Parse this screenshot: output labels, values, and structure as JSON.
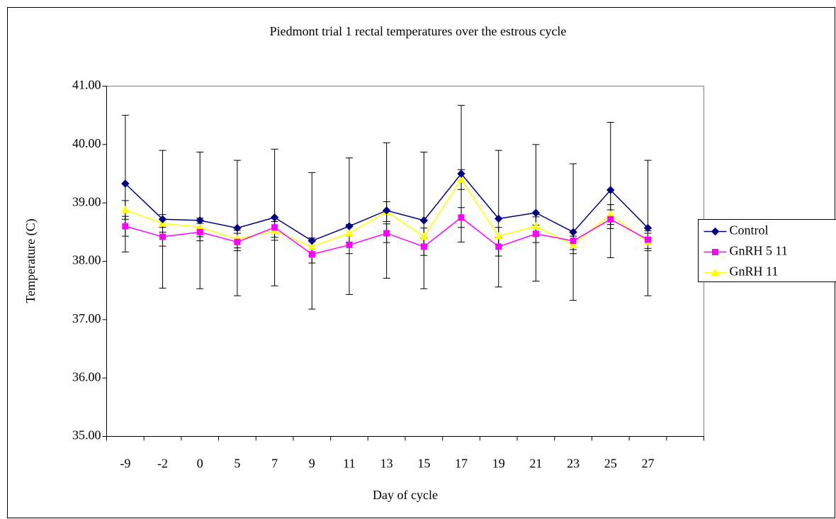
{
  "chart_data": {
    "type": "line",
    "title": "Piedmont trial 1 rectal temperatures over the estrous cycle",
    "x_label": "Day of cycle",
    "y_label": "Temperature (C)",
    "categories": [
      "-9",
      "-2",
      "0",
      "5",
      "7",
      "9",
      "11",
      "13",
      "15",
      "17",
      "19",
      "21",
      "23",
      "25",
      "27",
      null
    ],
    "ylim": [
      35,
      41
    ],
    "yticks": [
      {
        "value": 35,
        "label": "35.00"
      },
      {
        "value": 36,
        "label": "36.00"
      },
      {
        "value": 37,
        "label": "37.00"
      },
      {
        "value": 38,
        "label": "38.00"
      },
      {
        "value": 39,
        "label": "39.00"
      },
      {
        "value": 40,
        "label": "40.00"
      },
      {
        "value": 41,
        "label": "41.00"
      }
    ],
    "grid": false,
    "legend": "right",
    "series": [
      {
        "name": "Control",
        "color": "#000080",
        "marker": "diamond",
        "values": [
          39.33,
          38.72,
          38.7,
          38.57,
          38.75,
          38.35,
          38.6,
          38.87,
          38.7,
          39.5,
          38.73,
          38.83,
          38.5,
          39.22,
          38.57,
          null
        ],
        "errors": [
          1.17,
          1.18,
          1.17,
          1.16,
          1.17,
          1.17,
          1.17,
          1.16,
          1.17,
          1.17,
          1.17,
          1.17,
          1.17,
          1.16,
          1.16,
          null
        ]
      },
      {
        "name": "GnRH 5 11",
        "color": "#ff00ff",
        "marker": "square",
        "values": [
          38.6,
          38.42,
          38.5,
          38.33,
          38.58,
          38.12,
          38.28,
          38.48,
          38.25,
          38.75,
          38.25,
          38.47,
          38.35,
          38.72,
          38.37,
          null
        ],
        "errors": [
          0.17,
          0.16,
          0.15,
          0.15,
          0.17,
          0.15,
          0.15,
          0.16,
          0.15,
          0.17,
          0.16,
          0.15,
          0.15,
          0.16,
          0.15,
          null
        ]
      },
      {
        "name": "GnRH 11",
        "color": "#ffff00",
        "marker": "triangle",
        "values": [
          38.88,
          38.65,
          38.58,
          38.38,
          38.52,
          38.25,
          38.48,
          38.85,
          38.42,
          39.4,
          38.43,
          38.6,
          38.28,
          38.8,
          38.33,
          null
        ],
        "errors": [
          0.16,
          0.15,
          0.16,
          0.15,
          0.16,
          0.15,
          0.15,
          0.17,
          0.15,
          0.17,
          0.15,
          0.16,
          0.15,
          0.17,
          0.15,
          null
        ]
      }
    ]
  }
}
